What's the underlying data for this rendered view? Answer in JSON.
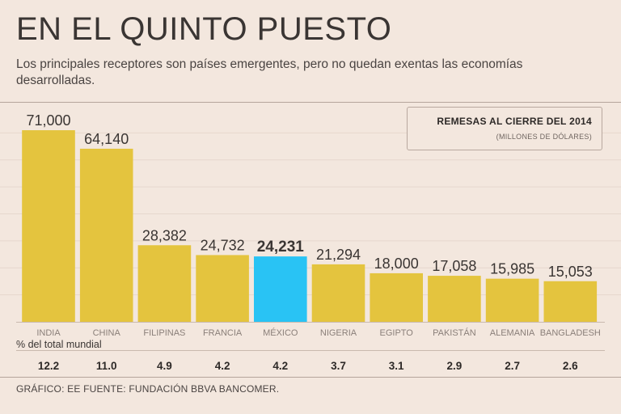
{
  "header": {
    "title": "EN EL QUINTO PUESTO",
    "subtitle": "Los principales receptores son países emergentes, pero no quedan exentas las economías desarrolladas."
  },
  "legend": {
    "title": "REMESAS AL CIERRE DEL 2014",
    "subtitle": "(MILLONES DE DÓLARES)"
  },
  "pct_header": "% del total mundial",
  "footer": "GRÁFICO: EE   FUENTE: FUNDACIÓN BBVA BANCOMER.",
  "colors": {
    "bar": "#e4c43e",
    "highlight": "#29c3f4",
    "background": "#f3e7de",
    "grid": "#e6d7cd"
  },
  "chart_data": {
    "type": "bar",
    "title": "REMESAS AL CIERRE DEL 2014",
    "ylabel": "(MILLONES DE DÓLARES)",
    "xlabel": "",
    "categories": [
      "INDIA",
      "CHINA",
      "FILIPINAS",
      "FRANCIA",
      "MÉXICO",
      "NIGERIA",
      "EGIPTO",
      "PAKISTÁN",
      "ALEMANIA",
      "BANGLADESH"
    ],
    "values": [
      71000,
      64140,
      28382,
      24732,
      24231,
      21294,
      18000,
      17058,
      15985,
      15053
    ],
    "value_labels": [
      "71,000",
      "64,140",
      "28,382",
      "24,732",
      "24,231",
      "21,294",
      "18,000",
      "17,058",
      "15,985",
      "15,053"
    ],
    "percent_of_world_total": [
      "12.2",
      "11.0",
      "4.9",
      "4.2",
      "4.2",
      "3.7",
      "3.1",
      "2.9",
      "2.7",
      "2.6"
    ],
    "highlight": "MÉXICO",
    "ylim": [
      0,
      80000
    ],
    "grid": true
  }
}
